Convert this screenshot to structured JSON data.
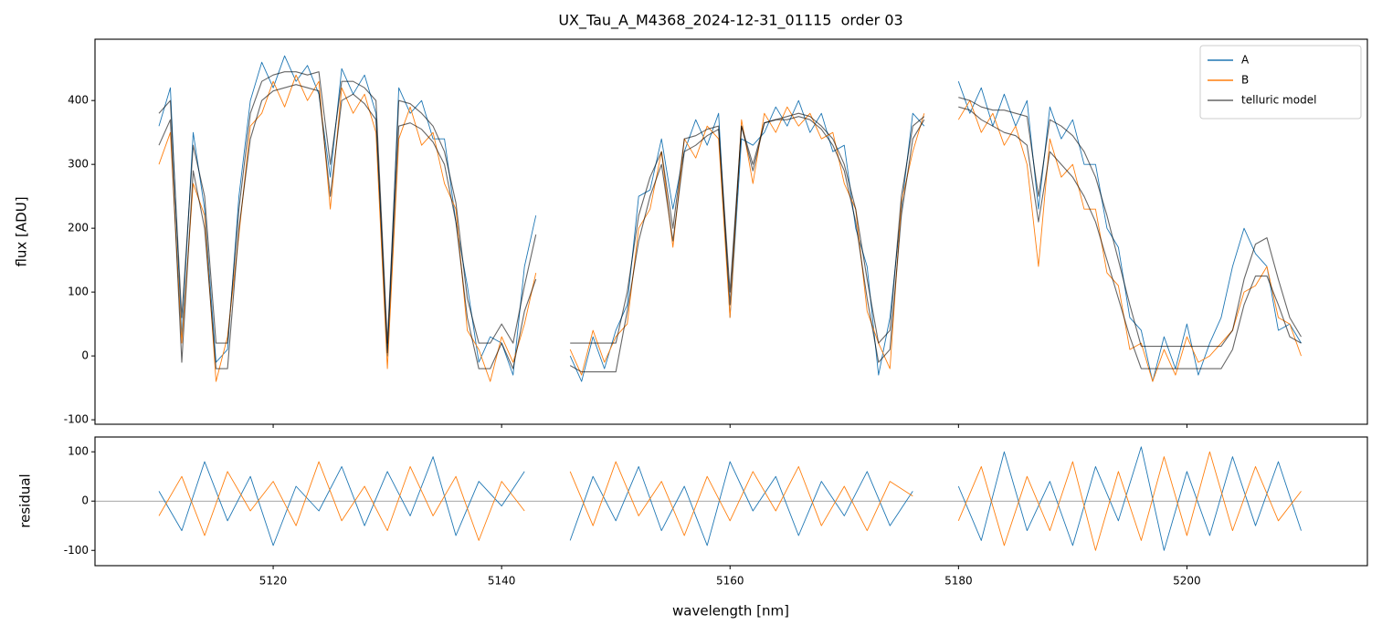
{
  "chart_data": [
    {
      "type": "line",
      "title": "UX_Tau_A_M4368_2024-12-31_01115  order 03",
      "ylabel": "flux [ADU]",
      "x": [
        5110,
        5111,
        5112,
        5113,
        5114,
        5115,
        5116,
        5117,
        5118,
        5119,
        5120,
        5121,
        5122,
        5123,
        5124,
        5125,
        5126,
        5127,
        5128,
        5129,
        5130,
        5131,
        5132,
        5133,
        5134,
        5135,
        5136,
        5137,
        5138,
        5139,
        5140,
        5141,
        5142,
        5143,
        5144,
        5145,
        5146,
        5147,
        5148,
        5149,
        5150,
        5151,
        5152,
        5153,
        5154,
        5155,
        5156,
        5157,
        5158,
        5159,
        5160,
        5161,
        5162,
        5163,
        5164,
        5165,
        5166,
        5167,
        5168,
        5169,
        5170,
        5171,
        5172,
        5173,
        5174,
        5175,
        5176,
        5177,
        5178,
        5179,
        5180,
        5181,
        5182,
        5183,
        5184,
        5185,
        5186,
        5187,
        5188,
        5189,
        5190,
        5191,
        5192,
        5193,
        5194,
        5195,
        5196,
        5197,
        5198,
        5199,
        5200,
        5201,
        5202,
        5203,
        5204,
        5205,
        5206,
        5207,
        5208,
        5209,
        5210
      ],
      "series": [
        {
          "name": "A",
          "color": "#1f77b4",
          "width": 0.9,
          "values": [
            360,
            420,
            30,
            350,
            230,
            -10,
            10,
            250,
            400,
            460,
            420,
            470,
            430,
            455,
            410,
            280,
            450,
            410,
            440,
            380,
            0,
            420,
            380,
            400,
            340,
            340,
            210,
            110,
            -10,
            30,
            20,
            -30,
            140,
            220,
            null,
            null,
            0,
            -40,
            30,
            -20,
            40,
            80,
            250,
            260,
            340,
            230,
            320,
            370,
            330,
            380,
            60,
            340,
            330,
            350,
            390,
            360,
            400,
            350,
            380,
            320,
            330,
            200,
            140,
            -30,
            60,
            230,
            380,
            360,
            null,
            null,
            430,
            380,
            420,
            360,
            410,
            360,
            400,
            230,
            390,
            340,
            370,
            300,
            300,
            200,
            170,
            60,
            40,
            -40,
            30,
            -20,
            50,
            -30,
            20,
            60,
            140,
            200,
            160,
            140,
            40,
            50,
            20
          ]
        },
        {
          "name": "B",
          "color": "#ff7f0e",
          "width": 0.9,
          "values": [
            300,
            350,
            20,
            270,
            220,
            -40,
            30,
            190,
            360,
            380,
            430,
            390,
            440,
            400,
            430,
            230,
            420,
            380,
            410,
            350,
            -20,
            340,
            390,
            330,
            350,
            270,
            230,
            40,
            10,
            -40,
            30,
            -10,
            50,
            130,
            null,
            null,
            10,
            -30,
            40,
            -10,
            30,
            50,
            200,
            230,
            320,
            170,
            340,
            310,
            360,
            340,
            60,
            370,
            270,
            380,
            350,
            390,
            360,
            380,
            340,
            350,
            270,
            230,
            70,
            20,
            -20,
            240,
            320,
            380,
            null,
            null,
            370,
            400,
            350,
            380,
            330,
            360,
            300,
            140,
            340,
            280,
            300,
            230,
            230,
            130,
            110,
            10,
            20,
            -40,
            10,
            -30,
            30,
            -10,
            0,
            20,
            40,
            100,
            110,
            140,
            60,
            50,
            0
          ]
        },
        {
          "name": "telluric model",
          "color": "#000000",
          "opacity": 0.6,
          "width": 1.1,
          "values": [
            380,
            400,
            60,
            330,
            250,
            20,
            20,
            230,
            380,
            430,
            440,
            445,
            445,
            440,
            445,
            300,
            430,
            430,
            420,
            400,
            20,
            400,
            395,
            380,
            360,
            320,
            240,
            90,
            20,
            20,
            50,
            20,
            110,
            190,
            null,
            null,
            20,
            20,
            20,
            20,
            20,
            100,
            220,
            280,
            320,
            200,
            340,
            345,
            355,
            360,
            100,
            360,
            300,
            365,
            370,
            375,
            380,
            375,
            360,
            340,
            300,
            230,
            120,
            20,
            40,
            250,
            360,
            375,
            null,
            null,
            405,
            400,
            390,
            385,
            385,
            380,
            375,
            250,
            370,
            360,
            345,
            320,
            280,
            220,
            150,
            80,
            15,
            15,
            15,
            15,
            15,
            15,
            15,
            15,
            40,
            120,
            175,
            185,
            120,
            60,
            30
          ]
        },
        {
          "color": "#000000",
          "opacity": 0.6,
          "width": 1.1,
          "values": [
            330,
            370,
            -10,
            290,
            200,
            -20,
            -20,
            200,
            340,
            400,
            415,
            420,
            425,
            420,
            415,
            250,
            400,
            410,
            395,
            370,
            5,
            360,
            365,
            355,
            335,
            300,
            210,
            60,
            -20,
            -20,
            20,
            -20,
            70,
            120,
            null,
            null,
            -15,
            -25,
            -25,
            -25,
            -25,
            70,
            180,
            250,
            300,
            180,
            320,
            330,
            345,
            355,
            80,
            360,
            290,
            365,
            370,
            370,
            375,
            370,
            355,
            330,
            290,
            210,
            90,
            -10,
            10,
            220,
            340,
            370,
            null,
            null,
            390,
            385,
            370,
            360,
            350,
            345,
            330,
            210,
            320,
            300,
            280,
            250,
            210,
            150,
            90,
            30,
            -20,
            -20,
            -20,
            -20,
            -20,
            -20,
            -20,
            -20,
            10,
            80,
            125,
            125,
            80,
            30,
            20
          ]
        }
      ],
      "xlim": [
        5104.4,
        5215.8
      ],
      "xticks": [
        5120,
        5140,
        5160,
        5180,
        5200
      ],
      "xtick_labels": false,
      "ylim": [
        -107,
        496
      ],
      "yticks": [
        -100,
        0,
        100,
        200,
        300,
        400
      ],
      "legend": "upper right"
    },
    {
      "type": "line",
      "xlabel": "wavelength [nm]",
      "ylabel": "residual",
      "x": [
        5110,
        5112,
        5114,
        5116,
        5118,
        5120,
        5122,
        5124,
        5126,
        5128,
        5130,
        5132,
        5134,
        5136,
        5138,
        5140,
        5142,
        5144,
        5146,
        5148,
        5150,
        5152,
        5154,
        5156,
        5158,
        5160,
        5162,
        5164,
        5166,
        5168,
        5170,
        5172,
        5174,
        5176,
        5178,
        5180,
        5182,
        5184,
        5186,
        5188,
        5190,
        5192,
        5194,
        5196,
        5198,
        5200,
        5202,
        5204,
        5206,
        5208,
        5210
      ],
      "series": [
        {
          "color": "#1f77b4",
          "width": 0.9,
          "values": [
            20,
            -60,
            80,
            -40,
            50,
            -90,
            30,
            -20,
            70,
            -50,
            60,
            -30,
            90,
            -70,
            40,
            -10,
            60,
            null,
            -80,
            50,
            -40,
            70,
            -60,
            30,
            -90,
            80,
            -20,
            50,
            -70,
            40,
            -30,
            60,
            -50,
            20,
            null,
            30,
            -80,
            100,
            -60,
            40,
            -90,
            70,
            -40,
            110,
            -100,
            60,
            -70,
            90,
            -50,
            80,
            -60
          ]
        },
        {
          "color": "#ff7f0e",
          "width": 0.9,
          "values": [
            -30,
            50,
            -70,
            60,
            -20,
            40,
            -50,
            80,
            -40,
            30,
            -60,
            70,
            -30,
            50,
            -80,
            40,
            -20,
            null,
            60,
            -50,
            80,
            -30,
            40,
            -70,
            50,
            -40,
            60,
            -20,
            70,
            -50,
            30,
            -60,
            40,
            10,
            null,
            -40,
            70,
            -90,
            50,
            -60,
            80,
            -100,
            60,
            -80,
            90,
            -70,
            100,
            -60,
            70,
            -40,
            20
          ]
        }
      ],
      "xlim": [
        5104.4,
        5215.8
      ],
      "xticks": [
        5120,
        5140,
        5160,
        5180,
        5200
      ],
      "xtick_labels": true,
      "ylim": [
        -131,
        130
      ],
      "yticks": [
        -100,
        0,
        100
      ],
      "zero_line": true
    }
  ]
}
